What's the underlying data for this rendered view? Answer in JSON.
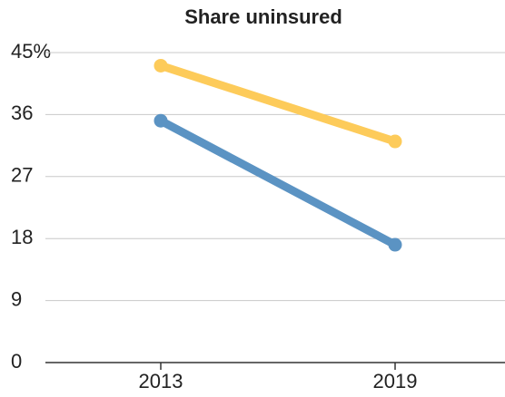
{
  "chart_data": {
    "type": "line",
    "title": "Share uninsured",
    "categories": [
      "2013",
      "2019"
    ],
    "series": [
      {
        "color": "#fdcb5a",
        "values": [
          43.1,
          32.1
        ]
      },
      {
        "color": "#5b93c3",
        "values": [
          35.1,
          17.1
        ]
      }
    ],
    "ylim": [
      0,
      45
    ],
    "yticks": [
      0,
      9,
      18,
      27,
      36,
      {
        "value": 45,
        "label": "45%"
      }
    ],
    "grid": true
  }
}
